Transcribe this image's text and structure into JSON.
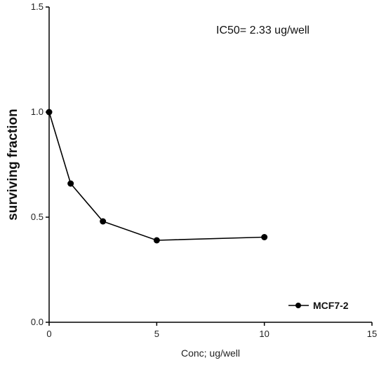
{
  "chart_data": {
    "type": "line",
    "x": [
      0,
      1,
      2.5,
      5,
      10
    ],
    "series": [
      {
        "name": "MCF7-2",
        "values": [
          1.0,
          0.66,
          0.48,
          0.39,
          0.405
        ]
      }
    ],
    "xlabel": "Conc; ug/well",
    "ylabel": "surviving fraction",
    "xlim": [
      0,
      15
    ],
    "ylim": [
      0,
      1.5
    ],
    "x_ticks": [
      0,
      5,
      10,
      15
    ],
    "y_ticks": [
      0.0,
      0.5,
      1.0,
      1.5
    ],
    "x_tick_labels": [
      "0",
      "5",
      "10",
      "15"
    ],
    "y_tick_labels": [
      "0.0",
      "0.5",
      "1.0",
      "1.5"
    ],
    "annotation": "IC50= 2.33 ug/well",
    "legend_placement": "bottom-right",
    "grid": false,
    "line_color": "#000000"
  }
}
